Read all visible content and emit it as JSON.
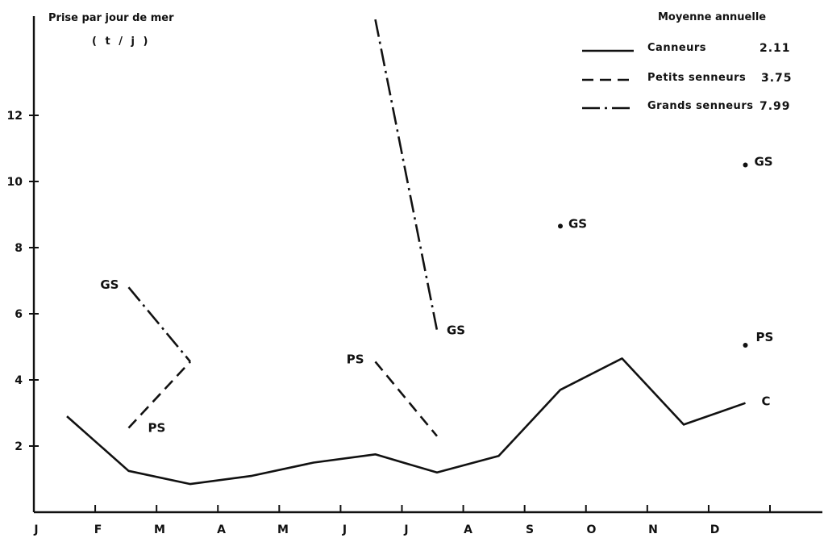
{
  "chart_data": {
    "type": "line",
    "ylabel_line1": "Prise par jour de mer",
    "ylabel_line2": "( t / j )",
    "legend_title": "Moyenne annuelle",
    "legend_position": "top-right",
    "grid": false,
    "categories": [
      "J",
      "F",
      "M",
      "A",
      "M",
      "J",
      "J",
      "A",
      "S",
      "O",
      "N",
      "D"
    ],
    "ylim": [
      0,
      15
    ],
    "y_ticks": [
      2,
      4,
      6,
      8,
      10,
      12
    ],
    "series": [
      {
        "key": "canneurs",
        "name": "Canneurs",
        "annual_mean": "2.11",
        "tag": "C",
        "style": "solid",
        "points": [
          {
            "month": 1,
            "value": 2.9
          },
          {
            "month": 2,
            "value": 1.25
          },
          {
            "month": 3,
            "value": 0.85
          },
          {
            "month": 4,
            "value": 1.1
          },
          {
            "month": 5,
            "value": 1.5
          },
          {
            "month": 6,
            "value": 1.75
          },
          {
            "month": 7,
            "value": 1.2
          },
          {
            "month": 8,
            "value": 1.7
          },
          {
            "month": 9,
            "value": 3.7
          },
          {
            "month": 10,
            "value": 4.65
          },
          {
            "month": 11,
            "value": 2.65
          },
          {
            "month": 12,
            "value": 3.3
          }
        ],
        "segments": [
          [
            0,
            1,
            2,
            3,
            4,
            5,
            6,
            7,
            8,
            9,
            10,
            11
          ]
        ],
        "dots": [],
        "tags": [
          {
            "at_point": 11,
            "text": "C"
          }
        ]
      },
      {
        "key": "petits_senneurs",
        "name": "Petits senneurs",
        "annual_mean": "3.75",
        "tag": "PS",
        "style": "dashed",
        "points": [
          {
            "month": 2,
            "value": 2.55
          },
          {
            "month": 3,
            "value": 4.55
          },
          {
            "month": 6,
            "value": 4.55
          },
          {
            "month": 7,
            "value": 2.3
          },
          {
            "month": 12,
            "value": 5.05
          }
        ],
        "segments": [
          [
            0,
            1
          ],
          [
            2,
            3
          ]
        ],
        "dots": [
          4
        ],
        "tags": [
          {
            "at_point": 0,
            "text": "PS"
          },
          {
            "at_point": 2,
            "text": "PS"
          },
          {
            "at_point": 4,
            "text": "PS"
          }
        ]
      },
      {
        "key": "grands_senneurs",
        "name": "Grands senneurs",
        "annual_mean": "7.99",
        "tag": "GS",
        "style": "dash-dot",
        "points": [
          {
            "month": 2,
            "value": 6.8
          },
          {
            "month": 3,
            "value": 4.55
          },
          {
            "month": 6,
            "value": 14.9
          },
          {
            "month": 7,
            "value": 5.5
          },
          {
            "month": 9,
            "value": 8.65
          },
          {
            "month": 12,
            "value": 10.5
          }
        ],
        "segments": [
          [
            0,
            1
          ],
          [
            2,
            3
          ]
        ],
        "dots": [
          4,
          5
        ],
        "tags": [
          {
            "at_point": 0,
            "text": "GS"
          },
          {
            "at_point": 3,
            "text": "GS"
          },
          {
            "at_point": 4,
            "text": "GS"
          },
          {
            "at_point": 5,
            "text": "GS"
          }
        ]
      }
    ]
  }
}
